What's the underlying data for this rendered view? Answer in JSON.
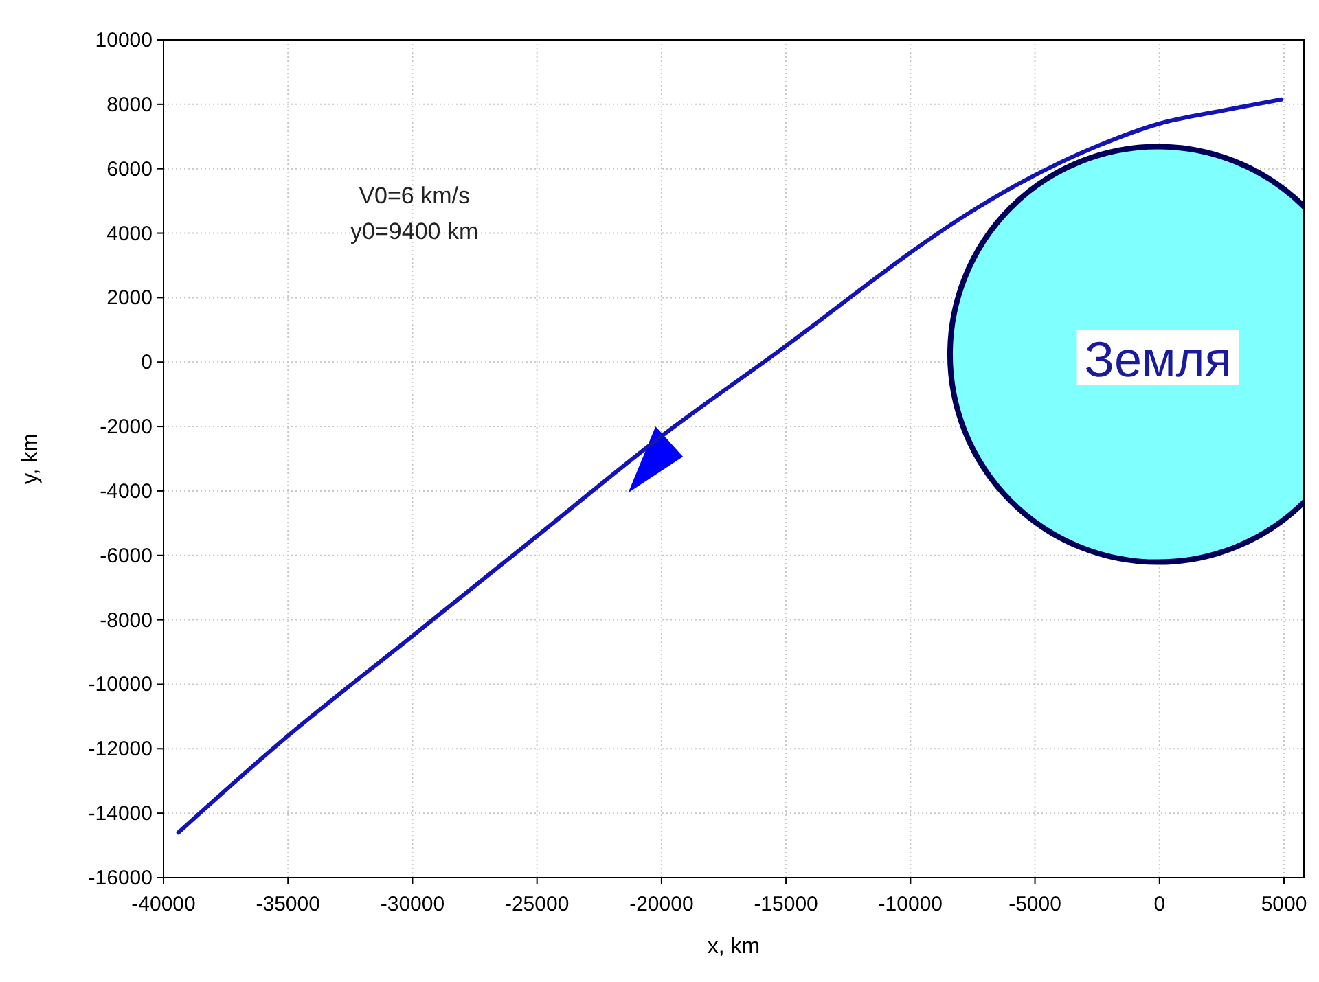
{
  "chart_data": {
    "type": "line",
    "xlabel": "x, km",
    "ylabel": "y, km",
    "xlim": [
      -40000,
      5800
    ],
    "xticks": [
      -40000,
      -35000,
      -30000,
      -25000,
      -20000,
      -15000,
      -10000,
      -5000,
      0,
      5000
    ],
    "ylim": [
      -16000,
      10000
    ],
    "yticks": [
      -16000,
      -14000,
      -12000,
      -10000,
      -8000,
      -6000,
      -4000,
      -2000,
      0,
      2000,
      4000,
      6000,
      8000,
      10000
    ],
    "grid": true,
    "series": [
      {
        "color": "#1414b4",
        "x": [
          -39400,
          -35000,
          -30000,
          -25000,
          -20000,
          -15000,
          -10000,
          -7500,
          -5000,
          -2500,
          0,
          2500,
          4900
        ],
        "values": [
          -14600,
          -11600,
          -8500,
          -5400,
          -2300,
          500,
          3400,
          4700,
          5800,
          6700,
          7400,
          7800,
          8150
        ]
      }
    ],
    "annotations": [
      "V0=6 km/s",
      "y0=9400 km",
      "Земля"
    ]
  }
}
